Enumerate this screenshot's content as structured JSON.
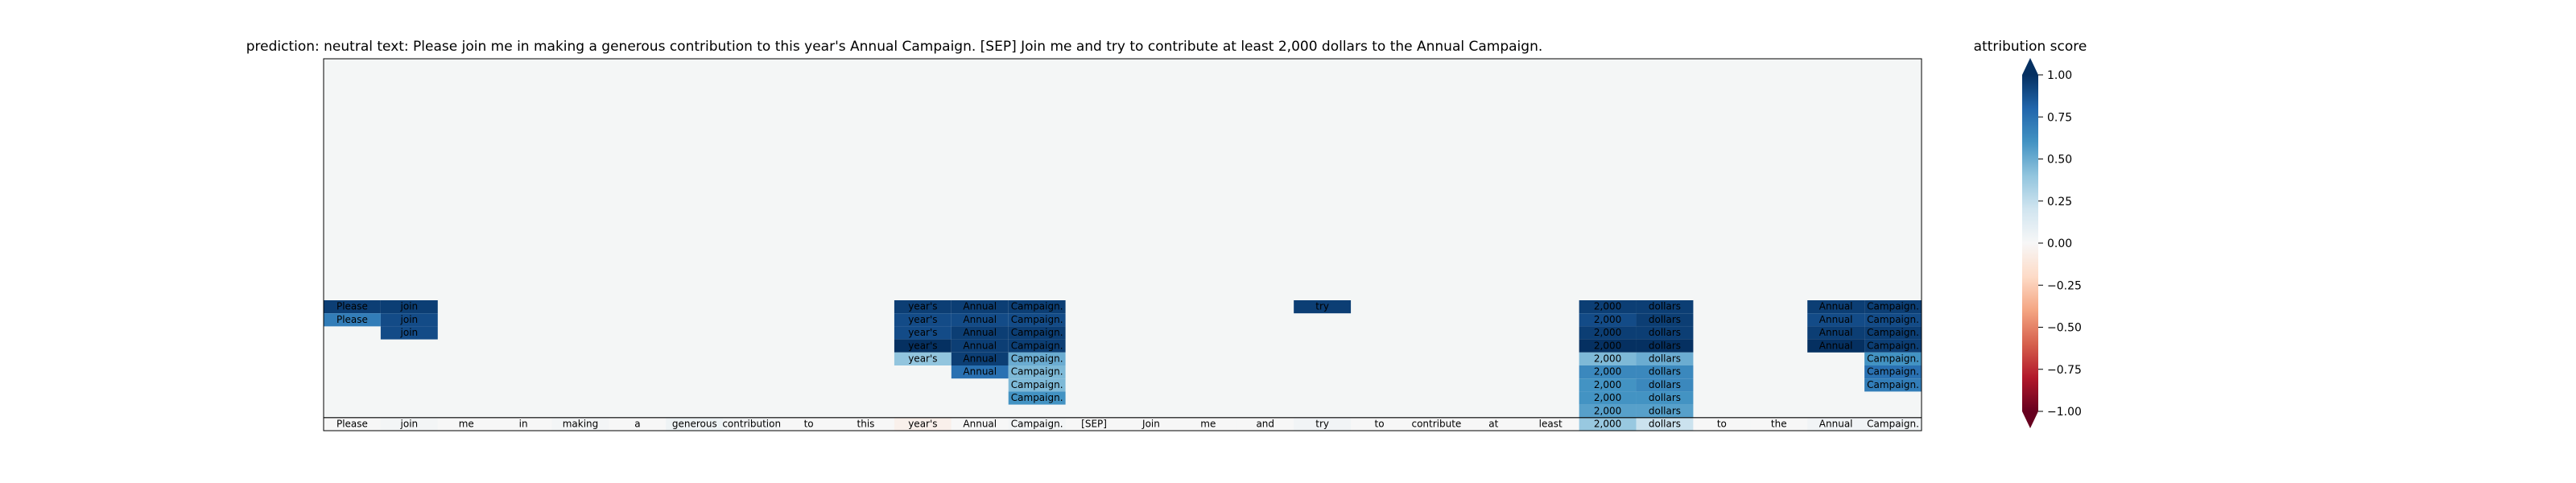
{
  "chart_data": {
    "type": "heatmap",
    "title": "prediction:  neutral     text:  Please join me in making a generous contribution to this year's Annual Campaign. [SEP] Join me and try to contribute at least 2,000 dollars to the Annual Campaign.",
    "tokens": [
      "Please",
      "join",
      "me",
      "in",
      "making",
      "a",
      "generous",
      "contribution",
      "to",
      "this",
      "year's",
      "Annual",
      "Campaign.",
      "[SEP]",
      "Join",
      "me",
      "and",
      "try",
      "to",
      "contribute",
      "at",
      "least",
      "2,000",
      "dollars",
      "to",
      "the",
      "Annual",
      "Campaign."
    ],
    "bottom_row_scores": [
      0.0,
      0.02,
      0.0,
      0.0,
      0.02,
      0.0,
      0.05,
      0.02,
      0.0,
      0.0,
      -0.05,
      0.0,
      0.02,
      0.0,
      0.0,
      0.0,
      0.0,
      0.03,
      0.0,
      0.0,
      0.0,
      0.0,
      0.38,
      0.22,
      0.0,
      0.0,
      0.03,
      0.03
    ],
    "stacked_cells": [
      {
        "token_index": 0,
        "level": 9,
        "label": "Please",
        "score": 0.95
      },
      {
        "token_index": 0,
        "level": 8,
        "label": "Please",
        "score": 0.7
      },
      {
        "token_index": 1,
        "level": 9,
        "label": "join",
        "score": 0.95
      },
      {
        "token_index": 1,
        "level": 8,
        "label": "join",
        "score": 0.9
      },
      {
        "token_index": 1,
        "level": 7,
        "label": "join",
        "score": 0.9
      },
      {
        "token_index": 10,
        "level": 9,
        "label": "year's",
        "score": 0.95
      },
      {
        "token_index": 10,
        "level": 8,
        "label": "year's",
        "score": 0.9
      },
      {
        "token_index": 10,
        "level": 7,
        "label": "year's",
        "score": 0.9
      },
      {
        "token_index": 10,
        "level": 6,
        "label": "year's",
        "score": 1.0
      },
      {
        "token_index": 10,
        "level": 5,
        "label": "year's",
        "score": 0.4
      },
      {
        "token_index": 11,
        "level": 9,
        "label": "Annual",
        "score": 0.95
      },
      {
        "token_index": 11,
        "level": 8,
        "label": "Annual",
        "score": 0.9
      },
      {
        "token_index": 11,
        "level": 7,
        "label": "Annual",
        "score": 0.95
      },
      {
        "token_index": 11,
        "level": 6,
        "label": "Annual",
        "score": 0.95
      },
      {
        "token_index": 11,
        "level": 5,
        "label": "Annual",
        "score": 0.95
      },
      {
        "token_index": 11,
        "level": 4,
        "label": "Annual",
        "score": 0.75
      },
      {
        "token_index": 12,
        "level": 9,
        "label": "Campaign.",
        "score": 0.95
      },
      {
        "token_index": 12,
        "level": 8,
        "label": "Campaign.",
        "score": 0.9
      },
      {
        "token_index": 12,
        "level": 7,
        "label": "Campaign.",
        "score": 0.95
      },
      {
        "token_index": 12,
        "level": 6,
        "label": "Campaign.",
        "score": 0.95
      },
      {
        "token_index": 12,
        "level": 5,
        "label": "Campaign.",
        "score": 0.5
      },
      {
        "token_index": 12,
        "level": 4,
        "label": "Campaign.",
        "score": 0.45
      },
      {
        "token_index": 12,
        "level": 3,
        "label": "Campaign.",
        "score": 0.45
      },
      {
        "token_index": 12,
        "level": 2,
        "label": "Campaign.",
        "score": 0.6
      },
      {
        "token_index": 17,
        "level": 9,
        "label": "try",
        "score": 0.95
      },
      {
        "token_index": 22,
        "level": 9,
        "label": "2,000",
        "score": 0.95
      },
      {
        "token_index": 22,
        "level": 8,
        "label": "2,000",
        "score": 0.9
      },
      {
        "token_index": 22,
        "level": 7,
        "label": "2,000",
        "score": 0.95
      },
      {
        "token_index": 22,
        "level": 6,
        "label": "2,000",
        "score": 1.0
      },
      {
        "token_index": 22,
        "level": 5,
        "label": "2,000",
        "score": 0.45
      },
      {
        "token_index": 22,
        "level": 4,
        "label": "2,000",
        "score": 0.65
      },
      {
        "token_index": 22,
        "level": 3,
        "label": "2,000",
        "score": 0.6
      },
      {
        "token_index": 22,
        "level": 2,
        "label": "2,000",
        "score": 0.6
      },
      {
        "token_index": 22,
        "level": 1,
        "label": "2,000",
        "score": 0.55
      },
      {
        "token_index": 23,
        "level": 9,
        "label": "dollars",
        "score": 0.95
      },
      {
        "token_index": 23,
        "level": 8,
        "label": "dollars",
        "score": 0.95
      },
      {
        "token_index": 23,
        "level": 7,
        "label": "dollars",
        "score": 0.95
      },
      {
        "token_index": 23,
        "level": 6,
        "label": "dollars",
        "score": 1.0
      },
      {
        "token_index": 23,
        "level": 5,
        "label": "dollars",
        "score": 0.5
      },
      {
        "token_index": 23,
        "level": 4,
        "label": "dollars",
        "score": 0.65
      },
      {
        "token_index": 23,
        "level": 3,
        "label": "dollars",
        "score": 0.65
      },
      {
        "token_index": 23,
        "level": 2,
        "label": "dollars",
        "score": 0.6
      },
      {
        "token_index": 23,
        "level": 1,
        "label": "dollars",
        "score": 0.55
      },
      {
        "token_index": 26,
        "level": 9,
        "label": "Annual",
        "score": 0.95
      },
      {
        "token_index": 26,
        "level": 8,
        "label": "Annual",
        "score": 0.9
      },
      {
        "token_index": 26,
        "level": 7,
        "label": "Annual",
        "score": 0.95
      },
      {
        "token_index": 26,
        "level": 6,
        "label": "Annual",
        "score": 1.0
      },
      {
        "token_index": 27,
        "level": 9,
        "label": "Campaign.",
        "score": 0.95
      },
      {
        "token_index": 27,
        "level": 8,
        "label": "Campaign.",
        "score": 0.9
      },
      {
        "token_index": 27,
        "level": 7,
        "label": "Campaign.",
        "score": 0.95
      },
      {
        "token_index": 27,
        "level": 6,
        "label": "Campaign.",
        "score": 0.95
      },
      {
        "token_index": 27,
        "level": 5,
        "label": "Campaign.",
        "score": 0.6
      },
      {
        "token_index": 27,
        "level": 4,
        "label": "Campaign.",
        "score": 0.75
      },
      {
        "token_index": 27,
        "level": 3,
        "label": "Campaign.",
        "score": 0.7
      }
    ],
    "colorbar": {
      "label": "attribution score",
      "range": [
        -1,
        1
      ],
      "ticks": [
        1.0,
        0.75,
        0.5,
        0.25,
        0.0,
        -0.25,
        -0.5,
        -0.75,
        -1.0
      ],
      "tick_labels": [
        "1.00",
        "0.75",
        "0.50",
        "0.25",
        "0.00",
        "−0.25",
        "−0.50",
        "−0.75",
        "−1.00"
      ],
      "colormap": "RdBu",
      "extend": "both"
    },
    "colors": {
      "background": "#f4f6f6",
      "neg_end": "#67001f",
      "pos_end": "#053061",
      "mid": "#f7f7f7"
    }
  }
}
